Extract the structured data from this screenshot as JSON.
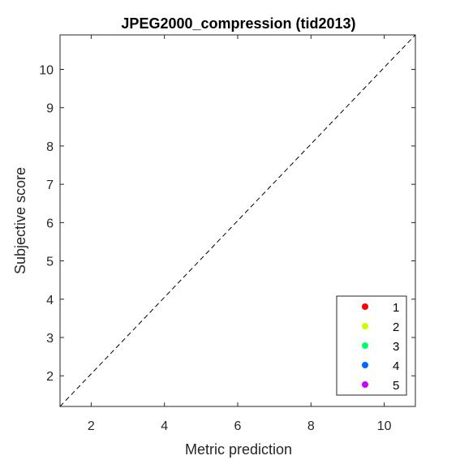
{
  "chart_data": {
    "type": "scatter",
    "title": "JPEG2000_compression (tid2013)",
    "xlabel": "Metric prediction",
    "ylabel": "Subjective score",
    "xlim": [
      1.15,
      10.85
    ],
    "ylim": [
      1.2,
      10.9
    ],
    "xticks": [
      2,
      4,
      6,
      8,
      10
    ],
    "yticks": [
      2,
      3,
      4,
      5,
      6,
      7,
      8,
      9,
      10
    ],
    "grid": false,
    "reference_line": {
      "style": "dashed",
      "from": [
        1.15,
        1.2
      ],
      "to": [
        10.85,
        10.9
      ],
      "color": "#000000"
    },
    "legend_position": "bottom-right",
    "series": [
      {
        "name": "1",
        "color": "#ff0000",
        "points": []
      },
      {
        "name": "2",
        "color": "#ccff00",
        "points": []
      },
      {
        "name": "3",
        "color": "#00ff66",
        "points": []
      },
      {
        "name": "4",
        "color": "#0066ff",
        "points": []
      },
      {
        "name": "5",
        "color": "#cc00ff",
        "points": []
      }
    ]
  }
}
